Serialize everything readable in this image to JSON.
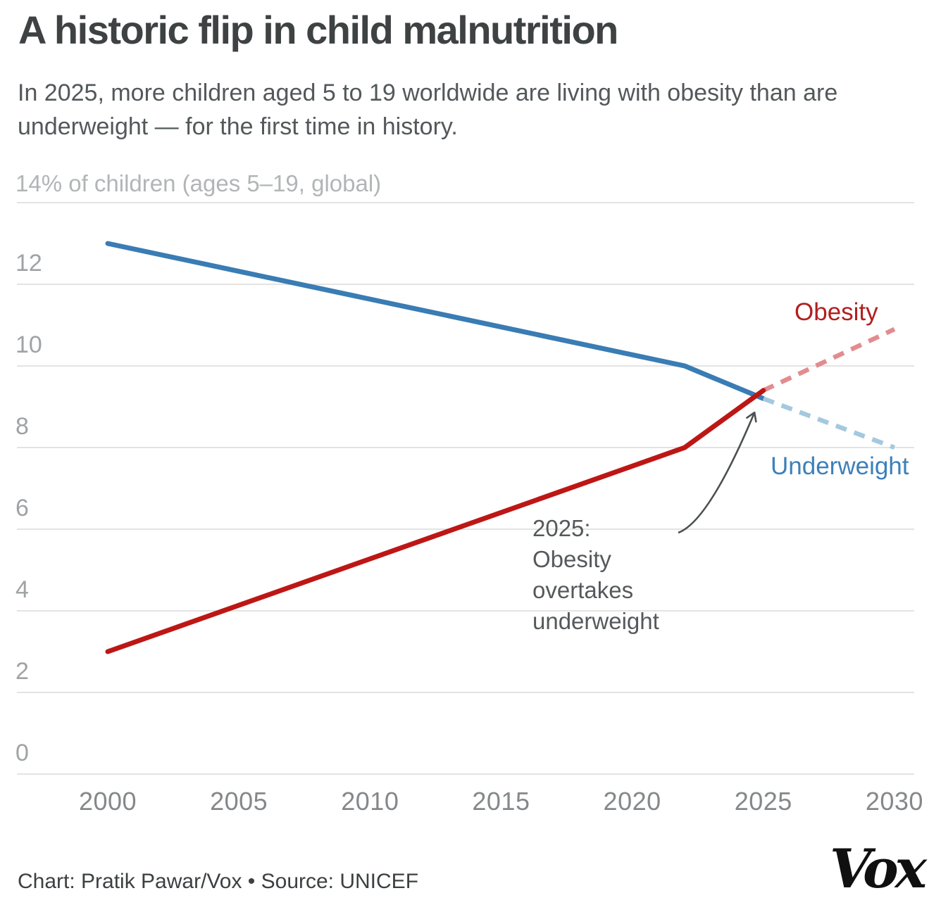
{
  "header": {
    "title": "A historic flip in child malnutrition",
    "subtitle": "In 2025, more children aged 5 to 19 worldwide are living with obesity than are underweight — for the first time in history."
  },
  "chart_data": {
    "type": "line",
    "unit_label": "14% of children (ages 5–19, global)",
    "ylabel": "% of children (ages 5–19, global)",
    "xlabel": "",
    "x": {
      "ticks": [
        2000,
        2005,
        2010,
        2015,
        2020,
        2025,
        2030
      ],
      "range": [
        2000,
        2030
      ]
    },
    "y": {
      "ticks": [
        0,
        2,
        4,
        6,
        8,
        10,
        12
      ],
      "gridlines": [
        0,
        2,
        4,
        6,
        8,
        10,
        12,
        14
      ],
      "range": [
        0,
        14
      ]
    },
    "grid": true,
    "legend_position": "inline-end-labels",
    "series": [
      {
        "name": "Underweight",
        "color": "#3a7cb4",
        "projection_color": "#a4c9df",
        "solid": [
          [
            2000,
            13.0
          ],
          [
            2022,
            10.0
          ],
          [
            2025,
            9.2
          ]
        ],
        "projected": [
          [
            2025,
            9.2
          ],
          [
            2030,
            8.0
          ]
        ]
      },
      {
        "name": "Obesity",
        "color": "#bd1715",
        "projection_color": "#e28c90",
        "solid": [
          [
            2000,
            3.0
          ],
          [
            2022,
            8.0
          ],
          [
            2025,
            9.4
          ]
        ],
        "projected": [
          [
            2025,
            9.4
          ],
          [
            2030,
            10.9
          ]
        ]
      }
    ],
    "annotation": {
      "text": "2025:\nObesity\novertakes\nunderweight"
    }
  },
  "footer": {
    "credit_line": "Chart: Pratik Pawar/Vox • Source: UNICEF",
    "logo_text": "Vox"
  }
}
